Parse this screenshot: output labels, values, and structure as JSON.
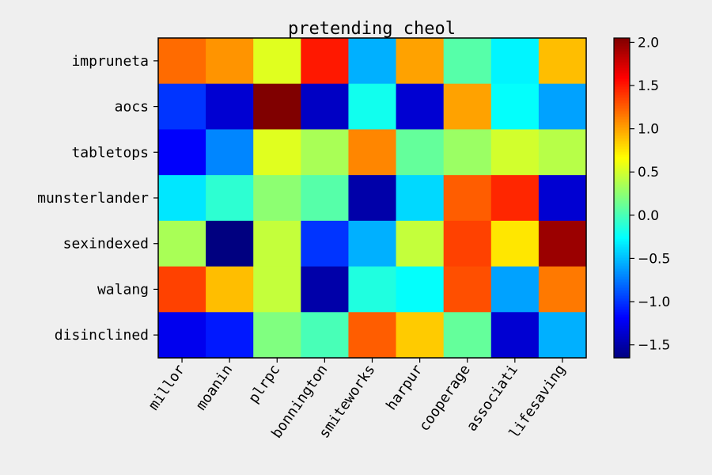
{
  "chart_data": {
    "type": "heatmap",
    "title": "pretending cheol",
    "xlabel": "",
    "ylabel": "",
    "columns": [
      "millor",
      "moanin",
      "plrpc",
      "bonnington",
      "smiteworks",
      "harpur",
      "cooperage",
      "associati",
      "lifesaving"
    ],
    "rows": [
      "impruneta",
      "aocs",
      "tabletops",
      "munsterlander",
      "sexindexed",
      "walang",
      "disinclined"
    ],
    "values": [
      [
        1.2,
        1.05,
        0.55,
        1.5,
        -0.55,
        1.0,
        0.05,
        -0.3,
        0.9
      ],
      [
        -1.0,
        -1.35,
        2.05,
        -1.4,
        -0.2,
        -1.35,
        1.0,
        -0.25,
        -0.6
      ],
      [
        -1.2,
        -0.7,
        0.55,
        0.35,
        1.1,
        0.1,
        0.3,
        0.5,
        0.4
      ],
      [
        -0.35,
        -0.1,
        0.25,
        0.05,
        -1.5,
        -0.4,
        1.25,
        1.45,
        -1.35
      ],
      [
        0.35,
        -1.65,
        0.45,
        -1.0,
        -0.55,
        0.45,
        1.35,
        0.75,
        1.95
      ],
      [
        1.35,
        0.9,
        0.45,
        -1.5,
        -0.15,
        -0.25,
        1.3,
        -0.6,
        1.15
      ],
      [
        -1.25,
        -1.1,
        0.2,
        0.0,
        1.25,
        0.85,
        0.1,
        -1.35,
        -0.55
      ]
    ],
    "colorbar": {
      "vmin": -1.65,
      "vmax": 2.05,
      "ticks": [
        2.0,
        1.5,
        1.0,
        0.5,
        0.0,
        -0.5,
        -1.0,
        -1.5
      ],
      "tick_labels": [
        "2.0",
        "1.5",
        "1.0",
        "0.5",
        "0.0",
        "−0.5",
        "−1.0",
        "−1.5"
      ]
    },
    "colormap": "jet"
  },
  "colors": {
    "background": "#efefef",
    "axis": "#000000",
    "text": "#000000"
  }
}
